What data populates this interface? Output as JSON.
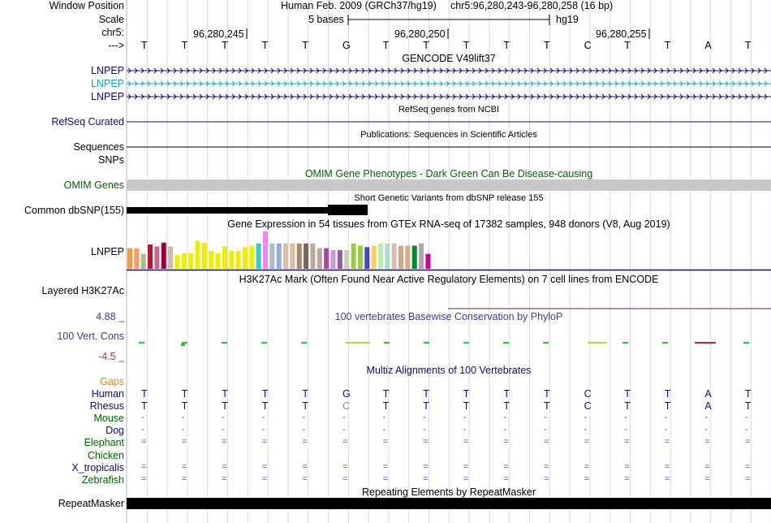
{
  "ruler": {
    "assembly": "Human Feb. 2009 (GRCh37/hg19)",
    "position": "chr5:96,280,243-96,280,258 (16 bp)",
    "scale_text": "5 bases",
    "db": "hg19",
    "ticks": [
      "96,280,245",
      "96,280,250",
      "96,280,255"
    ],
    "bases": [
      "T",
      "T",
      "T",
      "T",
      "T",
      "G",
      "T",
      "T",
      "T",
      "T",
      "T",
      "C",
      "T",
      "T",
      "A",
      "T"
    ]
  },
  "left_labels": [
    {
      "text": "Window Position",
      "color": "#000000"
    },
    {
      "text": "Scale",
      "color": "#000000"
    },
    {
      "text": "chr5:",
      "color": "#000000"
    },
    {
      "text": "--->",
      "color": "#000000"
    },
    {
      "text": "LNPEP",
      "color": "#0c0c78"
    },
    {
      "text": "LNPEP",
      "color": "#1aa0c0"
    },
    {
      "text": "LNPEP",
      "color": "#0c0c78"
    },
    {
      "text": "RefSeq Curated",
      "color": "#0c0c78"
    },
    {
      "text": "Sequences",
      "color": "#000000"
    },
    {
      "text": "SNPs",
      "color": "#000000"
    },
    {
      "text": "OMIM Genes",
      "color": "#006400"
    },
    {
      "text": "Common dbSNP(155)",
      "color": "#000000"
    },
    {
      "text": "LNPEP",
      "color": "#000000"
    },
    {
      "text": "Layered H3K27Ac",
      "color": "#000000"
    },
    {
      "text": "4.88 _",
      "color": "#3a3aa0"
    },
    {
      "text": "100 Vert. Cons",
      "color": "#3a3aa0"
    },
    {
      "text": "-4.5 _",
      "color": "#a03a3a"
    },
    {
      "text": "Gaps",
      "color": "#e08a00"
    },
    {
      "text": "Human",
      "color": "#0c0c78"
    },
    {
      "text": "Rhesus",
      "color": "#0c0c78"
    },
    {
      "text": "Mouse",
      "color": "#006400"
    },
    {
      "text": "Dog",
      "color": "#0c0c78"
    },
    {
      "text": "Elephant",
      "color": "#006400"
    },
    {
      "text": "Chicken",
      "color": "#006400"
    },
    {
      "text": "X_tropicalis",
      "color": "#0c0c78"
    },
    {
      "text": "Zebrafish",
      "color": "#006400"
    },
    {
      "text": "RepeatMasker",
      "color": "#000000"
    }
  ],
  "track_titles": {
    "gencode": "GENCODE V49lift37",
    "refseq": "RefSeq genes from NCBI",
    "publications": "Publications: Sequences in Scientific Articles",
    "omim": "OMIM Gene Phenotypes - Dark Green Can Be Disease-causing",
    "dbsnp": "Short Genetic Variants from dbSNP release 155",
    "gtex": "Gene Expression in 54 tissues from GTEx RNA-seq of 17382 samples, 948 donors (V8, Aug 2019)",
    "h3k27ac": "H3K27Ac Mark (Often Found Near Active Regulatory Elements) on 7 cell lines from ENCODE",
    "phylop": "100 vertebrates Basewise Conservation by PhyloP",
    "multiz": "Multiz Alignments of 100 Vertebrates",
    "repeatmasker": "Repeating Elements by RepeatMasker"
  },
  "gtex_bars": [
    {
      "color": "#ff9933",
      "value": 0.55
    },
    {
      "color": "#ff9966",
      "value": 0.55
    },
    {
      "color": "#aabb88",
      "value": 0.4
    },
    {
      "color": "#bb1133",
      "value": 0.65
    },
    {
      "color": "#cc6688",
      "value": 0.6
    },
    {
      "color": "#990033",
      "value": 0.7
    },
    {
      "color": "#ccbbaa",
      "value": 0.6
    },
    {
      "color": "#eeee00",
      "value": 0.37
    },
    {
      "color": "#eeee00",
      "value": 0.42
    },
    {
      "color": "#eeee00",
      "value": 0.42
    },
    {
      "color": "#eeee00",
      "value": 0.75
    },
    {
      "color": "#eeee00",
      "value": 0.7
    },
    {
      "color": "#eeee00",
      "value": 0.48
    },
    {
      "color": "#eeee00",
      "value": 0.42
    },
    {
      "color": "#eeee00",
      "value": 0.6
    },
    {
      "color": "#eeee00",
      "value": 0.48
    },
    {
      "color": "#eeee00",
      "value": 0.48
    },
    {
      "color": "#eeee00",
      "value": 0.58
    },
    {
      "color": "#eeee00",
      "value": 0.62
    },
    {
      "color": "#33cccc",
      "value": 0.68
    },
    {
      "color": "#ee88ee",
      "value": 1.0
    },
    {
      "color": "#aabbcc",
      "value": 0.68
    },
    {
      "color": "#99aadd",
      "value": 0.68
    },
    {
      "color": "#ddbbaa",
      "value": 0.68
    },
    {
      "color": "#ddbbaa",
      "value": 0.68
    },
    {
      "color": "#aa8866",
      "value": 0.68
    },
    {
      "color": "#776655",
      "value": 0.68
    },
    {
      "color": "#bbaa99",
      "value": 0.68
    },
    {
      "color": "#bbaa99",
      "value": 0.55
    },
    {
      "color": "#aa44aa",
      "value": 0.55
    },
    {
      "color": "#cc99cc",
      "value": 0.5
    },
    {
      "color": "#9955aa",
      "value": 0.5
    },
    {
      "color": "#ccccbb",
      "value": 0.5
    },
    {
      "color": "#99cc44",
      "value": 0.68
    },
    {
      "color": "#99cc44",
      "value": 0.62
    },
    {
      "color": "#4444cc",
      "value": 0.58
    },
    {
      "color": "#ffcc66",
      "value": 0.62
    },
    {
      "color": "#bbeeaa",
      "value": 0.68
    },
    {
      "color": "#aaddcc",
      "value": 0.68
    },
    {
      "color": "#ddbbaa",
      "value": 0.68
    },
    {
      "color": "#ccaa88",
      "value": 0.62
    },
    {
      "color": "#ddaa88",
      "value": 0.62
    },
    {
      "color": "#008833",
      "value": 0.62
    },
    {
      "color": "#aaaaaa",
      "value": 0.68
    },
    {
      "color": "#cc0099",
      "value": 0.4
    }
  ],
  "multiz": {
    "human": [
      "T",
      "T",
      "T",
      "T",
      "T",
      "G",
      "T",
      "T",
      "T",
      "T",
      "T",
      "C",
      "T",
      "T",
      "A",
      "T"
    ],
    "rhesus": [
      "T",
      "T",
      "T",
      "T",
      "T",
      "C",
      "T",
      "T",
      "T",
      "T",
      "T",
      "C",
      "T",
      "T",
      "A",
      "T"
    ],
    "mouse": [
      "-",
      "-",
      "-",
      "-",
      "-",
      "-",
      "-",
      "-",
      "-",
      "-",
      "-",
      "-",
      "-",
      "-",
      "-",
      "-"
    ],
    "dog": [
      "-",
      "-",
      "-",
      "-",
      "-",
      "-",
      "-",
      "-",
      "-",
      "-",
      "-",
      "-",
      "-",
      "-",
      "-",
      "-"
    ],
    "elephant": [
      "=",
      "=",
      "=",
      "=",
      "=",
      "=",
      "=",
      "=",
      "=",
      "=",
      "=",
      "=",
      "=",
      "=",
      "=",
      "="
    ],
    "x_tropicalis": [
      "=",
      "=",
      "=",
      "=",
      "=",
      "=",
      "=",
      "=",
      "=",
      "=",
      "=",
      "=",
      "=",
      "=",
      "=",
      "="
    ],
    "zebrafish": [
      "=",
      "=",
      "=",
      "=",
      "=",
      "=",
      "=",
      "=",
      "=",
      "=",
      "=",
      "=",
      "=",
      "=",
      "=",
      "="
    ]
  },
  "colors": {
    "gene_dark": "#0c0c78",
    "gene_light": "#1aa0c0",
    "omim_bar": "#c8c8c8",
    "phylop_pos": "#22cc22",
    "phylop_neg": "#cc2222",
    "h3k27ac_line": "#7a1a5a",
    "grid": "#d8d8ee"
  }
}
